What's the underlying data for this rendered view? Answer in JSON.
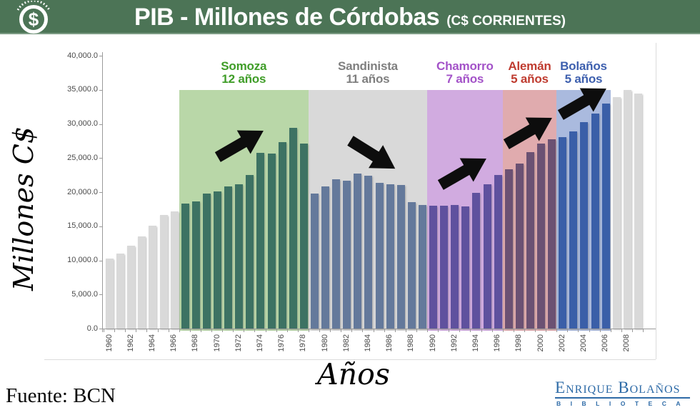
{
  "header": {
    "title": "PIB - Millones de Córdobas",
    "subtitle": "(C$ CORRIENTES)",
    "bg_color": "#4c7456",
    "coin_icon": "dollar-coin-icon"
  },
  "chart_data": {
    "type": "bar",
    "title": "PIB - Millones de Córdobas (C$ corrientes)",
    "xlabel": "Años",
    "ylabel": "Millones C$",
    "ylim": [
      0,
      40000
    ],
    "ytick_step": 5000,
    "ytick_labels": [
      "0.0",
      "5,000.0",
      "10,000.0",
      "15,000.0",
      "20,000.0",
      "25,000.0",
      "30,000.0",
      "35,000.0",
      "40,000.0"
    ],
    "grid": false,
    "legend": "none",
    "years": [
      1960,
      1961,
      1962,
      1963,
      1964,
      1965,
      1966,
      1967,
      1968,
      1969,
      1970,
      1971,
      1972,
      1973,
      1974,
      1975,
      1976,
      1977,
      1978,
      1979,
      1980,
      1981,
      1982,
      1983,
      1984,
      1985,
      1986,
      1987,
      1988,
      1989,
      1990,
      1991,
      1992,
      1993,
      1994,
      1995,
      1996,
      1997,
      1998,
      1999,
      2000,
      2001,
      2002,
      2003,
      2004,
      2005,
      2006,
      2007,
      2008,
      2009
    ],
    "values": [
      10300,
      11000,
      12100,
      13500,
      15100,
      16600,
      17200,
      18300,
      18600,
      19800,
      20100,
      20800,
      21200,
      22500,
      25800,
      25700,
      27300,
      29400,
      27100,
      19800,
      20800,
      21900,
      21700,
      22700,
      22400,
      21400,
      21200,
      21000,
      18500,
      18100,
      18000,
      18000,
      18100,
      17900,
      19900,
      21100,
      22500,
      23400,
      24200,
      25900,
      27100,
      27800,
      28100,
      28900,
      30300,
      31500,
      33000,
      33900,
      35000,
      34400
    ],
    "xtick_years": [
      1960,
      1962,
      1964,
      1966,
      1968,
      1970,
      1972,
      1974,
      1976,
      1978,
      1980,
      1982,
      1984,
      1986,
      1988,
      1990,
      1992,
      1994,
      1996,
      1998,
      2000,
      2002,
      2004,
      2006,
      2008
    ],
    "default_bar_color": "#d9d9d9",
    "eras": [
      {
        "name": "Somoza",
        "duration": "12 años",
        "start_year": 1967,
        "end_year": 1978,
        "label_color": "#3f9d28",
        "region_color": "#b9d7a8",
        "bar_color": "#3d7263",
        "arrow": "up"
      },
      {
        "name": "Sandinista",
        "duration": "11 años",
        "start_year": 1979,
        "end_year": 1989,
        "label_color": "#7f7f7f",
        "region_color": "#d9d9d9",
        "bar_color": "#64799b",
        "arrow": "down"
      },
      {
        "name": "Chamorro",
        "duration": "7 años",
        "start_year": 1990,
        "end_year": 1996,
        "label_color": "#a352c8",
        "region_color": "#d1abe0",
        "bar_color": "#5f519e",
        "arrow": "up"
      },
      {
        "name": "Alemán",
        "duration": "5 años",
        "start_year": 1997,
        "end_year": 2001,
        "label_color": "#bf3b2f",
        "region_color": "#e0abae",
        "bar_color": "#6b5173",
        "arrow": "up"
      },
      {
        "name": "Bolaños",
        "duration": "5 años",
        "start_year": 2002,
        "end_year": 2006,
        "label_color": "#3d5fae",
        "region_color": "#aabade",
        "bar_color": "#3a5fa8",
        "arrow": "up"
      }
    ]
  },
  "footer": {
    "source": "Fuente: BCN",
    "logo": {
      "line1": "Enrique Bolaños",
      "line2": "BIBLIOTECA",
      "color": "#2e6ba7"
    }
  }
}
